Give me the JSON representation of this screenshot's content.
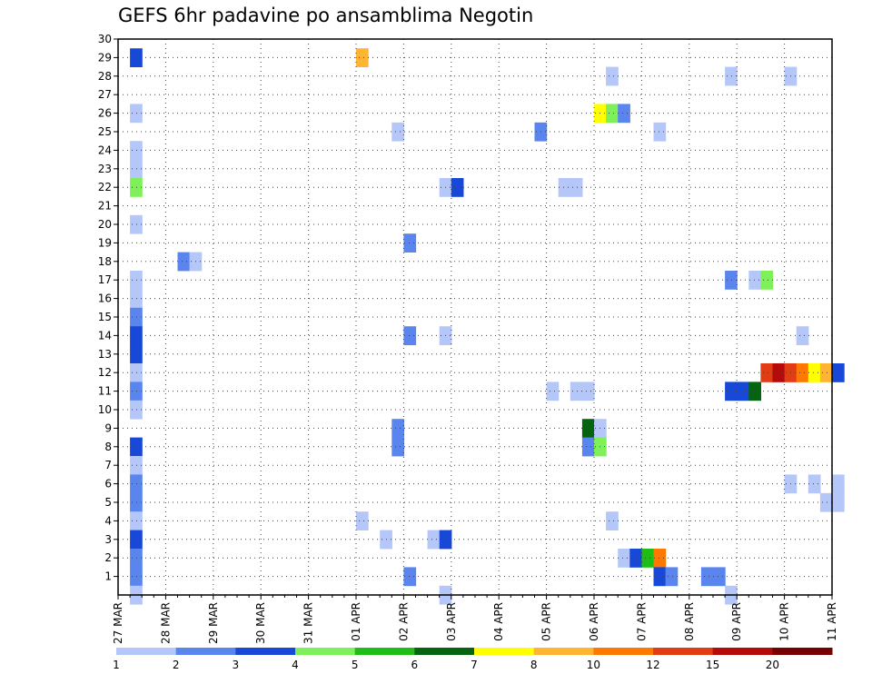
{
  "chart_data": {
    "type": "heatmap",
    "title": "GEFS 6hr padavine po ansamblima Negotin",
    "xlabel": "",
    "ylabel": "",
    "x_tick_labels": [
      "27 MAR",
      "28 MAR",
      "29 MAR",
      "30 MAR",
      "31 MAR",
      "01 APR",
      "02 APR",
      "03 APR",
      "04 APR",
      "05 APR",
      "06 APR",
      "07 APR",
      "08 APR",
      "09 APR",
      "10 APR",
      "11 APR"
    ],
    "y_tick_labels": [
      "1",
      "2",
      "3",
      "4",
      "5",
      "6",
      "7",
      "8",
      "9",
      "10",
      "11",
      "12",
      "13",
      "14",
      "15",
      "16",
      "17",
      "18",
      "19",
      "20",
      "21",
      "22",
      "23",
      "24",
      "25",
      "26",
      "27",
      "28",
      "29",
      "30"
    ],
    "x_range": [
      "27 MAR 00z",
      "11 APR 00z"
    ],
    "y_range": [
      0,
      30
    ],
    "grid": true,
    "legend": {
      "placement": "bottom",
      "ticks": [
        "1",
        "2",
        "3",
        "4",
        "5",
        "6",
        "7",
        "8",
        "10",
        "12",
        "15",
        "20"
      ],
      "colors": [
        "#b4c7f8",
        "#5a85ef",
        "#1848d8",
        "#7ef05a",
        "#1ebe14",
        "#05640f",
        "#ffff00",
        "#ffb432",
        "#ff7800",
        "#e13c14",
        "#b40a0a",
        "#780000"
      ]
    },
    "series_note": "cells: member (y), day offset from 27 MAR (x, 6h steps), color class index into legend.colors",
    "cells": [
      {
        "member": 29,
        "x": 0.25,
        "c": 2
      },
      {
        "member": 26,
        "x": 0.25,
        "c": 0
      },
      {
        "member": 24,
        "x": 0.25,
        "c": 0
      },
      {
        "member": 23,
        "x": 0.25,
        "c": 0
      },
      {
        "member": 22,
        "x": 0.25,
        "c": 3
      },
      {
        "member": 20,
        "x": 0.25,
        "c": 0
      },
      {
        "member": 17,
        "x": 0.25,
        "c": 0
      },
      {
        "member": 16,
        "x": 0.25,
        "c": 0
      },
      {
        "member": 15,
        "x": 0.25,
        "c": 1
      },
      {
        "member": 14,
        "x": 0.25,
        "c": 2
      },
      {
        "member": 13,
        "x": 0.25,
        "c": 2
      },
      {
        "member": 12,
        "x": 0.25,
        "c": 0
      },
      {
        "member": 11,
        "x": 0.25,
        "c": 1
      },
      {
        "member": 10,
        "x": 0.25,
        "c": 0
      },
      {
        "member": 8,
        "x": 0.25,
        "c": 2
      },
      {
        "member": 7,
        "x": 0.25,
        "c": 0
      },
      {
        "member": 6,
        "x": 0.25,
        "c": 1
      },
      {
        "member": 5,
        "x": 0.25,
        "c": 1
      },
      {
        "member": 4,
        "x": 0.25,
        "c": 0
      },
      {
        "member": 3,
        "x": 0.25,
        "c": 2
      },
      {
        "member": 2,
        "x": 0.25,
        "c": 1
      },
      {
        "member": 1,
        "x": 0.25,
        "c": 1
      },
      {
        "member": 0,
        "x": 0.25,
        "c": 0
      },
      {
        "member": 18,
        "x": 1.25,
        "c": 1
      },
      {
        "member": 18,
        "x": 1.5,
        "c": 0
      },
      {
        "member": 29,
        "x": 5.0,
        "c": 7
      },
      {
        "member": 4,
        "x": 5.0,
        "c": 0
      },
      {
        "member": 25,
        "x": 5.75,
        "c": 0
      },
      {
        "member": 3,
        "x": 5.5,
        "c": 0
      },
      {
        "member": 9,
        "x": 5.75,
        "c": 1
      },
      {
        "member": 8,
        "x": 5.75,
        "c": 1
      },
      {
        "member": 19,
        "x": 6.0,
        "c": 1
      },
      {
        "member": 14,
        "x": 6.0,
        "c": 1
      },
      {
        "member": 1,
        "x": 6.0,
        "c": 1
      },
      {
        "member": 22,
        "x": 6.75,
        "c": 0
      },
      {
        "member": 22,
        "x": 7.0,
        "c": 2
      },
      {
        "member": 14,
        "x": 6.75,
        "c": 0
      },
      {
        "member": 3,
        "x": 6.5,
        "c": 0
      },
      {
        "member": 3,
        "x": 6.75,
        "c": 2
      },
      {
        "member": 0,
        "x": 6.75,
        "c": 0
      },
      {
        "member": 25,
        "x": 8.75,
        "c": 1
      },
      {
        "member": 22,
        "x": 9.25,
        "c": 0
      },
      {
        "member": 22,
        "x": 9.5,
        "c": 0
      },
      {
        "member": 11,
        "x": 9.0,
        "c": 0
      },
      {
        "member": 11,
        "x": 9.5,
        "c": 0
      },
      {
        "member": 11,
        "x": 9.75,
        "c": 0
      },
      {
        "member": 9,
        "x": 9.75,
        "c": 5
      },
      {
        "member": 8,
        "x": 9.75,
        "c": 1
      },
      {
        "member": 9,
        "x": 10.0,
        "c": 0
      },
      {
        "member": 8,
        "x": 10.0,
        "c": 3
      },
      {
        "member": 26,
        "x": 10.0,
        "c": 6
      },
      {
        "member": 26,
        "x": 10.25,
        "c": 3
      },
      {
        "member": 26,
        "x": 10.5,
        "c": 1
      },
      {
        "member": 28,
        "x": 10.25,
        "c": 0
      },
      {
        "member": 4,
        "x": 10.25,
        "c": 0
      },
      {
        "member": 2,
        "x": 10.5,
        "c": 0
      },
      {
        "member": 2,
        "x": 10.75,
        "c": 2
      },
      {
        "member": 2,
        "x": 11.0,
        "c": 4
      },
      {
        "member": 2,
        "x": 11.25,
        "c": 8
      },
      {
        "member": 25,
        "x": 11.25,
        "c": 0
      },
      {
        "member": 1,
        "x": 11.25,
        "c": 2
      },
      {
        "member": 1,
        "x": 11.5,
        "c": 1
      },
      {
        "member": 1,
        "x": 12.25,
        "c": 1
      },
      {
        "member": 1,
        "x": 12.5,
        "c": 1
      },
      {
        "member": 0,
        "x": 12.75,
        "c": 0
      },
      {
        "member": 28,
        "x": 12.75,
        "c": 0
      },
      {
        "member": 17,
        "x": 12.75,
        "c": 1
      },
      {
        "member": 17,
        "x": 13.25,
        "c": 0
      },
      {
        "member": 17,
        "x": 13.5,
        "c": 3
      },
      {
        "member": 11,
        "x": 12.75,
        "c": 2
      },
      {
        "member": 11,
        "x": 13.0,
        "c": 2
      },
      {
        "member": 11,
        "x": 13.25,
        "c": 5
      },
      {
        "member": 12,
        "x": 13.5,
        "c": 9
      },
      {
        "member": 12,
        "x": 13.75,
        "c": 10
      },
      {
        "member": 12,
        "x": 14.0,
        "c": 9
      },
      {
        "member": 12,
        "x": 14.25,
        "c": 8
      },
      {
        "member": 12,
        "x": 14.5,
        "c": 6
      },
      {
        "member": 12,
        "x": 14.75,
        "c": 7
      },
      {
        "member": 12,
        "x": 15.0,
        "c": 2
      },
      {
        "member": 28,
        "x": 14.0,
        "c": 0
      },
      {
        "member": 14,
        "x": 14.25,
        "c": 0
      },
      {
        "member": 6,
        "x": 14.0,
        "c": 0
      },
      {
        "member": 6,
        "x": 14.5,
        "c": 0
      },
      {
        "member": 6,
        "x": 15.0,
        "c": 0
      },
      {
        "member": 5,
        "x": 14.75,
        "c": 0
      },
      {
        "member": 5,
        "x": 15.0,
        "c": 0
      }
    ]
  }
}
